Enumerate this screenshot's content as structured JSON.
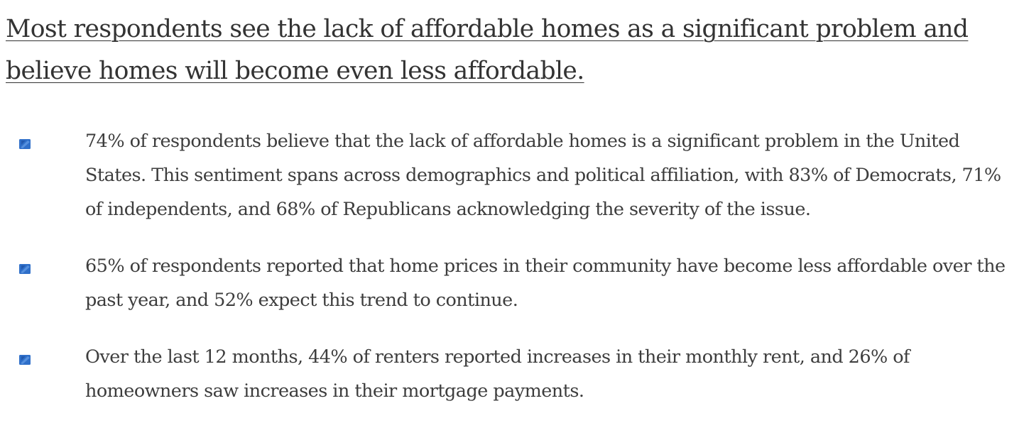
{
  "heading": "Most respondents see the lack of affordable homes as a significant problem and believe homes will become even less affordable.",
  "bullet_icon": "blue-square-bullet-icon",
  "accent_color": "#2f6fc9",
  "bullets": [
    {
      "text": "74% of respondents believe that the lack of affordable homes is a significant problem in the United States. This sentiment spans across demographics and political affiliation, with 83% of Democrats, 71% of independents, and 68% of Republicans acknowledging the severity of the issue."
    },
    {
      "text": "65% of respondents reported that home prices in their community have become less affordable over the past year, and 52% expect this trend to continue."
    },
    {
      "text": "Over the last 12 months, 44% of renters reported increases in their monthly rent, and 26% of homeowners saw increases in their mortgage payments."
    }
  ]
}
